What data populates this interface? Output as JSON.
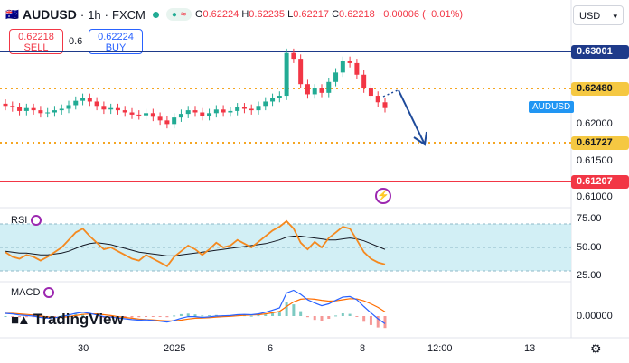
{
  "header": {
    "symbol": "AUDUSD",
    "interval": "1h",
    "exchange": "FXCM",
    "separator": "·",
    "open_label": "O",
    "open": "0.62224",
    "high_label": "H",
    "high": "0.62235",
    "low_label": "L",
    "low": "0.62217",
    "close_label": "C",
    "close": "0.62218",
    "change": "−0.00006 (−0.01%)"
  },
  "trade": {
    "sell_price": "0.62218",
    "sell_label": "SELL",
    "spread": "0.6",
    "buy_price": "0.62224",
    "buy_label": "BUY"
  },
  "currency": "USD",
  "price_axis": {
    "level_1": "0.63001",
    "level_2": "0.62480",
    "tick_1": "0.62000",
    "level_3": "0.61727",
    "tick_2": "0.61500",
    "level_4": "0.61207",
    "tick_3": "0.61000"
  },
  "symbol_tag": "AUDUSD",
  "rsi": {
    "label": "RSI",
    "tick_75": "75.00",
    "tick_50": "50.00",
    "tick_25": "25.00"
  },
  "macd": {
    "label": "MACD",
    "tick_0": "0.00000"
  },
  "time_axis": {
    "t1": "30",
    "t2": "2025",
    "t3": "6",
    "t4": "8",
    "t5": "12:00",
    "t6": "13"
  },
  "logo_text": "TradingView",
  "colors": {
    "up": "#22ab94",
    "down": "#f23645",
    "resistance_line": "#1e3a8a",
    "support_line": "#f23645",
    "dotted_level": "#f5a623",
    "rsi_line": "#f5891f",
    "rsi_ma": "#131722",
    "rsi_band": "#d2eff5",
    "macd_line": "#2962ff",
    "signal_line": "#ff6d00",
    "arrow": "#1e4a9a"
  },
  "chart_data": {
    "type": "candlestick",
    "title": "AUDUSD · 1h · FXCM",
    "x_ticks": [
      "30",
      "2025",
      "6",
      "8",
      "12:00",
      "13"
    ],
    "ylim": [
      0.6095,
      0.6315
    ],
    "y_ticks": [
      0.61,
      0.615,
      0.62,
      0.6248,
      0.63001
    ],
    "horizontal_levels": [
      0.63001,
      0.6248,
      0.61727,
      0.61207
    ],
    "close_series": [
      0.6225,
      0.6223,
      0.6218,
      0.6222,
      0.6219,
      0.6215,
      0.6216,
      0.6219,
      0.6221,
      0.6226,
      0.6232,
      0.6236,
      0.6231,
      0.6225,
      0.622,
      0.6222,
      0.6219,
      0.6216,
      0.6213,
      0.6212,
      0.6215,
      0.621,
      0.6205,
      0.62,
      0.6209,
      0.6214,
      0.6219,
      0.6216,
      0.6211,
      0.6215,
      0.622,
      0.6216,
      0.6218,
      0.6223,
      0.6221,
      0.6219,
      0.6225,
      0.6231,
      0.6236,
      0.6239,
      0.6298,
      0.629,
      0.6255,
      0.6241,
      0.6249,
      0.6243,
      0.6258,
      0.6271,
      0.6287,
      0.6284,
      0.6268,
      0.6249,
      0.6239,
      0.623,
      0.6222
    ],
    "rsi": {
      "levels": [
        75,
        50,
        25
      ],
      "values": [
        45,
        40,
        38,
        42,
        40,
        36,
        40,
        45,
        50,
        58,
        66,
        70,
        62,
        55,
        48,
        50,
        46,
        42,
        38,
        36,
        42,
        38,
        34,
        30,
        40,
        46,
        52,
        48,
        42,
        48,
        55,
        50,
        52,
        58,
        54,
        50,
        56,
        62,
        68,
        72,
        78,
        70,
        55,
        48,
        56,
        50,
        60,
        66,
        72,
        70,
        58,
        45,
        38,
        34,
        32
      ],
      "ma": [
        46,
        45,
        44,
        44,
        43,
        42,
        42,
        43,
        44,
        46,
        49,
        52,
        54,
        55,
        54,
        53,
        51,
        49,
        47,
        45,
        44,
        43,
        42,
        41,
        41,
        42,
        43,
        44,
        45,
        46,
        47,
        48,
        49,
        50,
        51,
        52,
        53,
        54,
        56,
        58,
        61,
        62,
        62,
        61,
        60,
        59,
        58,
        58,
        59,
        60,
        59,
        57,
        54,
        51,
        48
      ]
    },
    "macd": {
      "macd_line": [
        0.0001,
        8e-05,
        4e-05,
        2e-05,
        0.0,
        -5e-05,
        -8e-05,
        -6e-05,
        -2e-05,
        4e-05,
        0.0001,
        0.00014,
        0.0001,
        4e-05,
        -2e-05,
        -4e-05,
        -7e-05,
        -0.0001,
        -0.00013,
        -0.00015,
        -0.00014,
        -0.00016,
        -0.00019,
        -0.00022,
        -0.00016,
        -8e-05,
        -2e-05,
        -2e-05,
        -5e-05,
        -3e-05,
        0.0,
        1e-05,
        2e-05,
        5e-05,
        6e-05,
        5e-05,
        8e-05,
        0.00014,
        0.00022,
        0.0003,
        0.00085,
        0.00095,
        0.0008,
        0.0006,
        0.00048,
        0.00038,
        0.00045,
        0.00058,
        0.0007,
        0.00072,
        0.0006,
        0.00035,
        0.00012,
        -0.0001,
        -0.00028
      ],
      "signal_line": [
        0.0001,
        0.0001,
        8e-05,
        6e-05,
        4e-05,
        0.0,
        -3e-05,
        -5e-05,
        -5e-05,
        -2e-05,
        2e-05,
        6e-05,
        8e-05,
        8e-05,
        5e-05,
        2e-05,
        -2e-05,
        -5e-05,
        -8e-05,
        -0.00011,
        -0.00013,
        -0.00014,
        -0.00016,
        -0.00018,
        -0.00018,
        -0.00015,
        -0.00011,
        -8e-05,
        -7e-05,
        -6e-05,
        -4e-05,
        -2e-05,
        -1e-05,
        1e-05,
        3e-05,
        4e-05,
        5e-05,
        8e-05,
        0.00012,
        0.00017,
        0.00035,
        0.00052,
        0.00062,
        0.00064,
        0.00062,
        0.00058,
        0.00055,
        0.00056,
        0.0006,
        0.00064,
        0.00063,
        0.00056,
        0.00045,
        0.00032,
        0.00016
      ]
    }
  }
}
